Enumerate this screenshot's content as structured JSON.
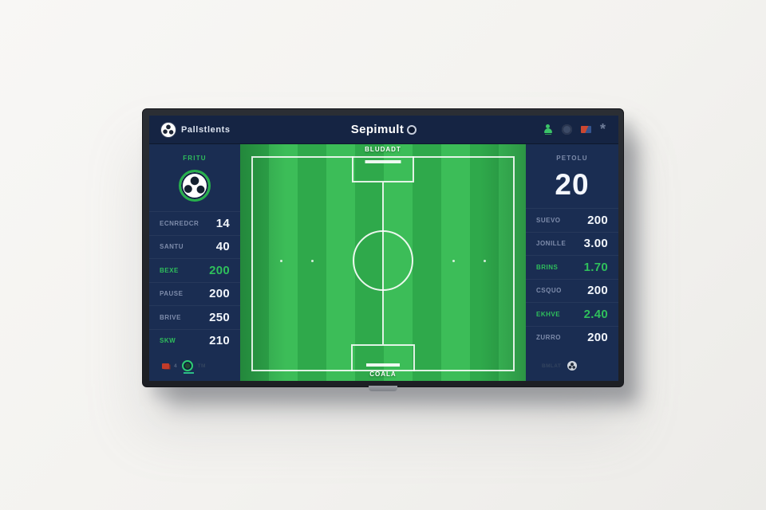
{
  "header": {
    "brand": "Pallstlents",
    "title": "Sepimult",
    "icons": [
      "soccer-ball-logo",
      "user",
      "globe",
      "flag",
      "burst"
    ]
  },
  "left_panel": {
    "header_label": "FRITU",
    "rows": [
      {
        "label": "ECNREDCR",
        "value": "14"
      },
      {
        "label": "SANTU",
        "value": "40"
      },
      {
        "label": "BEXE",
        "value": "200"
      },
      {
        "label": "PAUSE",
        "value": "200"
      },
      {
        "label": "BRIVE",
        "value": "250"
      },
      {
        "label": "SKW",
        "value": "210"
      }
    ],
    "footer": {
      "flag_count": "4",
      "badge_text": "TM"
    }
  },
  "field": {
    "top_label": "BLUDADT",
    "bottom_label": "COALA"
  },
  "right_panel": {
    "header_label": "PETOLU",
    "score": "20",
    "rows": [
      {
        "label": "SUEVO",
        "value": "200"
      },
      {
        "label": "JONILLE",
        "value": "3.00"
      },
      {
        "label": "BRINS",
        "value": "1.70"
      },
      {
        "label": "CSQUO",
        "value": "200"
      },
      {
        "label": "EKHVE",
        "value": "2.40"
      },
      {
        "label": "ZURRO",
        "value": "200"
      }
    ],
    "footer": {
      "label": "BMLAT"
    }
  },
  "colors": {
    "accent_green": "#2fbf5c",
    "panel_navy": "#1a2d52",
    "header_navy": "#152443",
    "field_green_light": "#3cbd58",
    "field_green_dark": "#2fa94b",
    "value_white": "#f2f6fc",
    "label_gray": "#7e8cab"
  }
}
